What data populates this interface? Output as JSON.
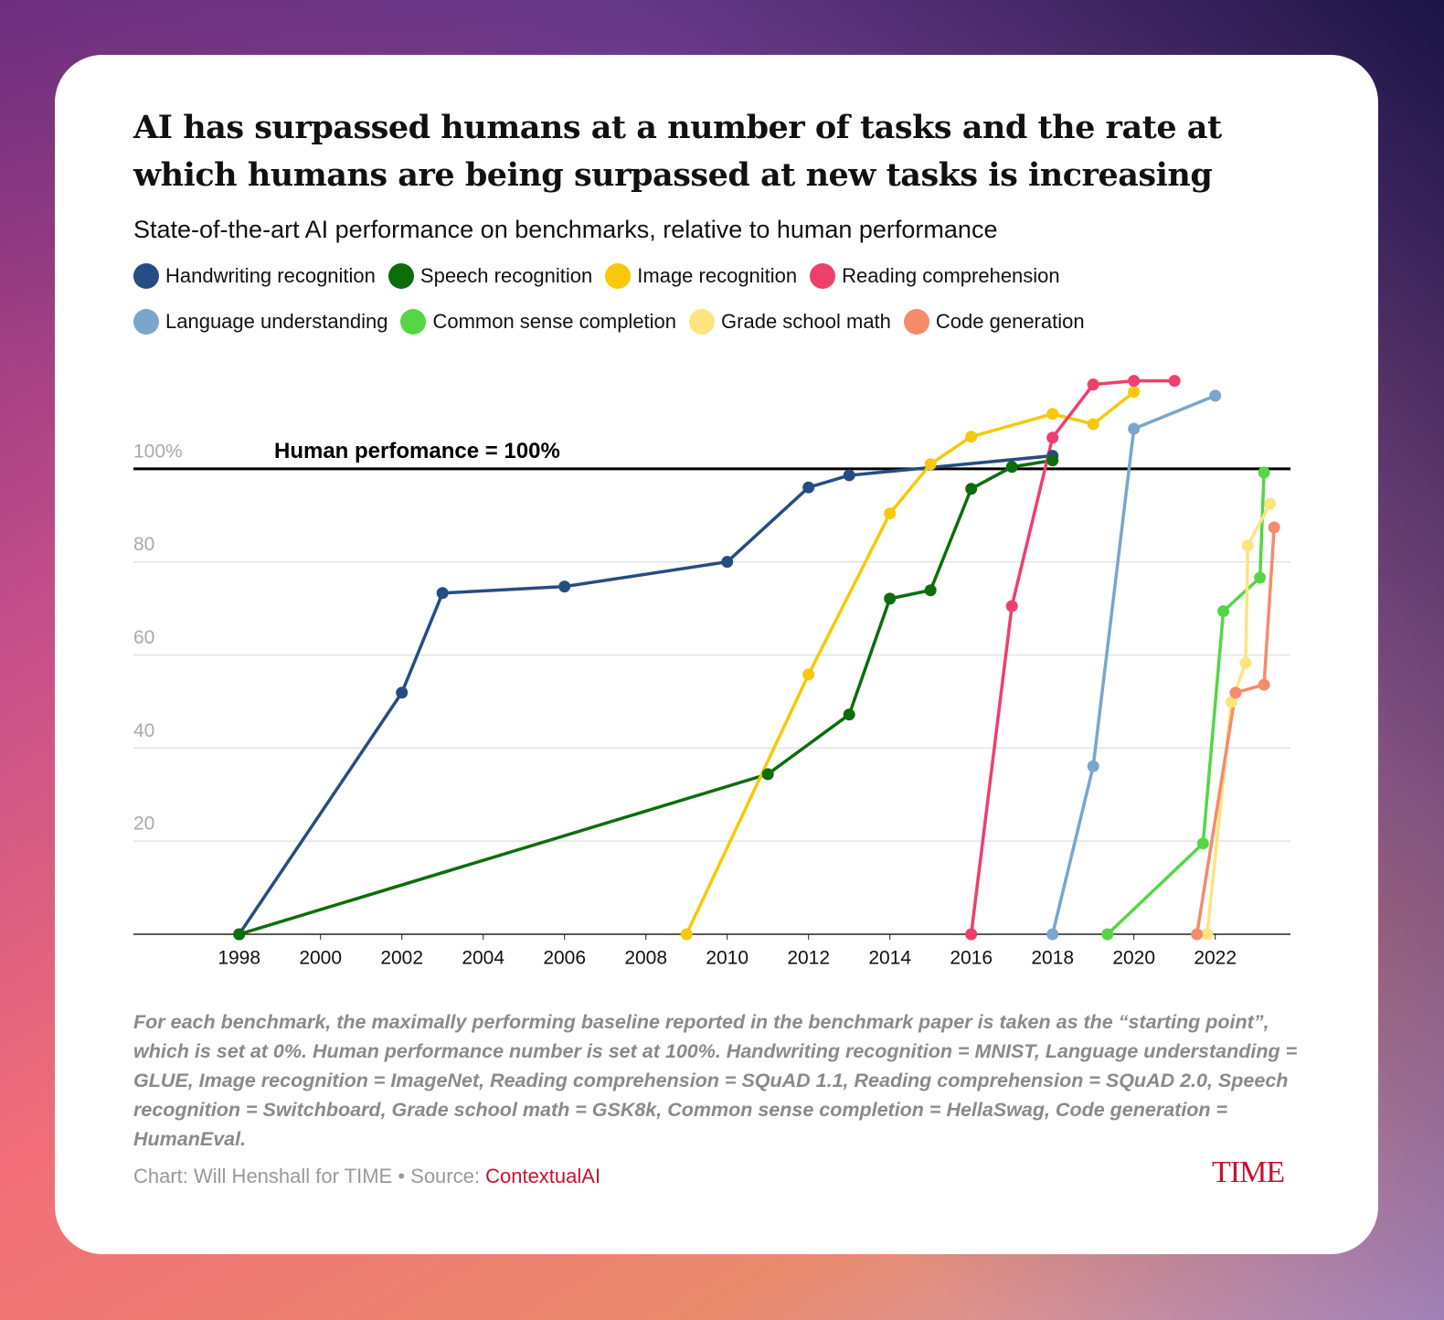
{
  "chart_data": {
    "type": "line",
    "title": "AI has surpassed humans at a number of tasks and the rate at which humans are being surpassed at new tasks is increasing",
    "subtitle": "State-of-the-art AI performance on benchmarks, relative to human performance",
    "annotation": "Human perfomance = 100%",
    "reference_line": 100,
    "xlim": [
      1995.4,
      2023.85
    ],
    "xticks": [
      1998,
      2000,
      2002,
      2004,
      2006,
      2008,
      2010,
      2012,
      2014,
      2016,
      2018,
      2020,
      2022
    ],
    "ylim": [
      0,
      120
    ],
    "yticks": [
      20,
      40,
      60,
      80,
      {
        "value": 100,
        "label": "100%"
      }
    ],
    "grid": true,
    "series": [
      {
        "name": "Handwriting recognition",
        "color": "#264d82",
        "x": [
          1998,
          2002,
          2003,
          2006,
          2010,
          2012,
          2013,
          2018
        ],
        "values": [
          0,
          51.9,
          73.3,
          74.7,
          80,
          96,
          98.6,
          102.8
        ]
      },
      {
        "name": "Speech recognition",
        "color": "#0b6e0b",
        "x": [
          1998,
          2011,
          2013,
          2014,
          2015,
          2016,
          2017,
          2018
        ],
        "values": [
          0,
          34.4,
          47.2,
          72.1,
          73.9,
          95.7,
          100.4,
          101.8
        ]
      },
      {
        "name": "Image recognition",
        "color": "#f7c90a",
        "x": [
          2009,
          2012,
          2014,
          2015,
          2016,
          2018,
          2019,
          2020
        ],
        "values": [
          0,
          55.8,
          90.4,
          101,
          106.9,
          111.8,
          109.6,
          116.5
        ]
      },
      {
        "name": "Reading comprehension",
        "color": "#ef3f6b",
        "x": [
          2016,
          2017,
          2018,
          2019,
          2020,
          2021
        ],
        "values": [
          0,
          70.5,
          106.7,
          118.1,
          118.9,
          118.9
        ]
      },
      {
        "name": "Language understanding",
        "color": "#7aa6cb",
        "x": [
          2018,
          2019,
          2020,
          2022
        ],
        "values": [
          0,
          36.1,
          108.6,
          115.7
        ]
      },
      {
        "name": "Common sense completion",
        "color": "#55d645",
        "x": [
          2019.35,
          2021.7,
          2022.2,
          2023.1,
          2023.2
        ],
        "values": [
          0,
          19.5,
          69.4,
          76.6,
          99.2
        ]
      },
      {
        "name": "Grade school math",
        "color": "#fde47f",
        "x": [
          2021.8,
          2022.4,
          2022.75,
          2022.8,
          2023.35
        ],
        "values": [
          0,
          49.9,
          58.3,
          83.5,
          92.5
        ]
      },
      {
        "name": "Code generation",
        "color": "#f58b6b",
        "x": [
          2021.55,
          2022.5,
          2023.2,
          2023.45
        ],
        "values": [
          0,
          51.9,
          53.6,
          87.4
        ]
      }
    ],
    "note": "For each benchmark, the maximally performing baseline reported in the benchmark paper is taken as the “starting point”, which is set at 0%. Human performance number is set at 100%. Handwriting recognition = MNIST, Language understanding = GLUE, Image recognition = ImageNet, Reading comprehension = SQuAD 1.1, Reading comprehension = SQuAD 2.0, Speech recognition = Switchboard, Grade school math = GSK8k, Common sense completion = HellaSwag, Code generation = HumanEval.",
    "credit": "Chart: Will Henshall for TIME • Source:",
    "source": "ContextualAI",
    "logo": "TIME"
  }
}
